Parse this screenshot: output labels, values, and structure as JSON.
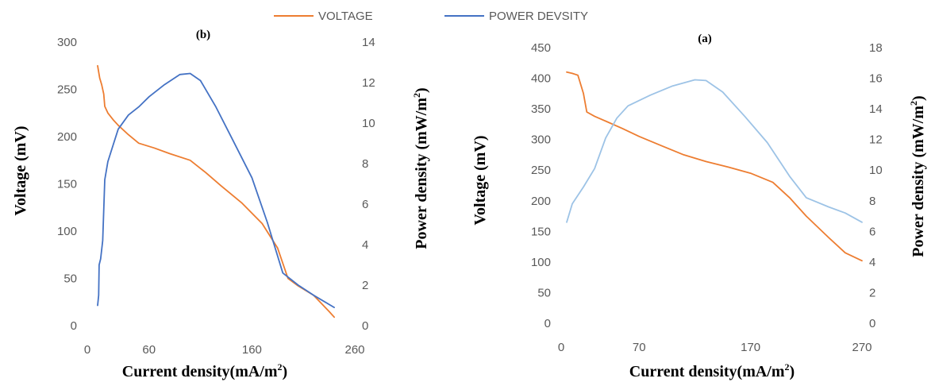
{
  "legend": {
    "items": [
      {
        "name": "VOLTAGE",
        "color": "#ed7d31"
      },
      {
        "name": "POWER DEVSITY",
        "color": "#4472c4"
      }
    ]
  },
  "chart_data": [
    {
      "type": "line",
      "panel_label": "(b)",
      "xlabel_main": "Current density(mA/m",
      "xlabel_sup": "2",
      "xlabel_end": ")",
      "ylabel": "Voltage (mV)",
      "y2label_main": "Power density (mW/m",
      "y2label_sup": "2",
      "y2label_end": ")",
      "xlim": [
        0,
        260
      ],
      "ylim": [
        0,
        300
      ],
      "y2lim": [
        0,
        14
      ],
      "xticks": [
        0,
        60,
        160,
        260
      ],
      "yticks": [
        0,
        50,
        100,
        150,
        200,
        250,
        300
      ],
      "y2ticks": [
        0,
        2,
        4,
        6,
        8,
        10,
        12,
        14
      ],
      "grid": false,
      "series": [
        {
          "name": "VOLTAGE",
          "axis": "left",
          "color": "#ed7d31",
          "points": [
            [
              10,
              275
            ],
            [
              12,
              262
            ],
            [
              14,
              255
            ],
            [
              16,
              245
            ],
            [
              17,
              232
            ],
            [
              20,
              225
            ],
            [
              25,
              218
            ],
            [
              30,
              212
            ],
            [
              40,
              202
            ],
            [
              50,
              193
            ],
            [
              65,
              188
            ],
            [
              80,
              182
            ],
            [
              100,
              175
            ],
            [
              115,
              162
            ],
            [
              130,
              148
            ],
            [
              150,
              130
            ],
            [
              170,
              108
            ],
            [
              185,
              82
            ],
            [
              195,
              50
            ],
            [
              205,
              42
            ],
            [
              220,
              32
            ],
            [
              235,
              15
            ],
            [
              240,
              9
            ]
          ]
        },
        {
          "name": "POWER DEVSITY",
          "axis": "right",
          "color": "#4472c4",
          "points": [
            [
              10,
              1.0
            ],
            [
              11,
              1.5
            ],
            [
              11.5,
              3.0
            ],
            [
              13,
              3.3
            ],
            [
              15,
              4.2
            ],
            [
              17,
              7.2
            ],
            [
              20,
              8.1
            ],
            [
              25,
              8.9
            ],
            [
              30,
              9.7
            ],
            [
              40,
              10.4
            ],
            [
              50,
              10.8
            ],
            [
              60,
              11.3
            ],
            [
              75,
              11.9
            ],
            [
              90,
              12.4
            ],
            [
              100,
              12.45
            ],
            [
              110,
              12.1
            ],
            [
              125,
              10.8
            ],
            [
              140,
              9.3
            ],
            [
              160,
              7.3
            ],
            [
              175,
              5.1
            ],
            [
              190,
              2.6
            ],
            [
              205,
              2.0
            ],
            [
              220,
              1.5
            ],
            [
              240,
              0.9
            ]
          ]
        }
      ]
    },
    {
      "type": "line",
      "panel_label": "(a)",
      "xlabel_main": "Current density(mA/m",
      "xlabel_sup": "2",
      "xlabel_end": ")",
      "ylabel": "Voltage (mV)",
      "y2label_main": "Power density (mW/m",
      "y2label_sup": "2",
      "y2label_end": ")",
      "xlim": [
        0,
        270
      ],
      "ylim": [
        0,
        450
      ],
      "y2lim": [
        0,
        18
      ],
      "xticks": [
        0,
        70,
        170,
        270
      ],
      "yticks": [
        0,
        50,
        100,
        150,
        200,
        250,
        300,
        350,
        400,
        450
      ],
      "y2ticks": [
        0,
        2,
        4,
        6,
        8,
        10,
        12,
        14,
        16,
        18
      ],
      "grid": false,
      "series": [
        {
          "name": "VOLTAGE",
          "axis": "left",
          "color": "#ed7d31",
          "points": [
            [
              5,
              410
            ],
            [
              10,
              408
            ],
            [
              15,
              405
            ],
            [
              20,
              375
            ],
            [
              23,
              345
            ],
            [
              30,
              338
            ],
            [
              40,
              330
            ],
            [
              55,
              318
            ],
            [
              70,
              305
            ],
            [
              90,
              290
            ],
            [
              110,
              275
            ],
            [
              130,
              264
            ],
            [
              150,
              255
            ],
            [
              170,
              245
            ],
            [
              190,
              230
            ],
            [
              205,
              205
            ],
            [
              220,
              175
            ],
            [
              240,
              140
            ],
            [
              255,
              115
            ],
            [
              270,
              102
            ]
          ]
        },
        {
          "name": "POWER DEVSITY",
          "axis": "right",
          "color": "#9dc3e6",
          "points": [
            [
              5,
              6.6
            ],
            [
              10,
              7.8
            ],
            [
              20,
              8.9
            ],
            [
              30,
              10.1
            ],
            [
              40,
              12.1
            ],
            [
              50,
              13.4
            ],
            [
              60,
              14.2
            ],
            [
              80,
              14.9
            ],
            [
              100,
              15.5
            ],
            [
              120,
              15.9
            ],
            [
              130,
              15.85
            ],
            [
              145,
              15.1
            ],
            [
              165,
              13.5
            ],
            [
              185,
              11.8
            ],
            [
              205,
              9.6
            ],
            [
              220,
              8.2
            ],
            [
              240,
              7.6
            ],
            [
              255,
              7.2
            ],
            [
              270,
              6.6
            ]
          ]
        }
      ]
    }
  ]
}
